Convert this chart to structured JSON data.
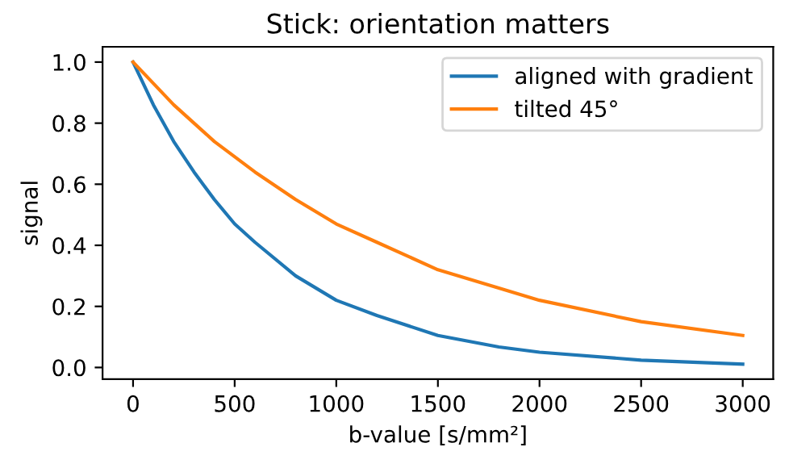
{
  "chart_data": {
    "type": "line",
    "title": "Stick: orientation matters",
    "xlabel": "b-value [s/mm²]",
    "ylabel": "signal",
    "series": [
      {
        "name": "aligned with gradient",
        "color": "#1f77b4",
        "x": [
          0,
          100,
          200,
          300,
          400,
          500,
          600,
          800,
          1000,
          1200,
          1500,
          1800,
          2000,
          2500,
          3000
        ],
        "values": [
          1.0,
          0.86,
          0.74,
          0.64,
          0.55,
          0.47,
          0.41,
          0.3,
          0.22,
          0.17,
          0.105,
          0.067,
          0.05,
          0.024,
          0.011
        ]
      },
      {
        "name": "tilted 45°",
        "color": "#ff7f0e",
        "x": [
          0,
          200,
          400,
          600,
          800,
          1000,
          1200,
          1500,
          1800,
          2000,
          2500,
          3000
        ],
        "values": [
          1.0,
          0.86,
          0.74,
          0.64,
          0.55,
          0.47,
          0.41,
          0.32,
          0.26,
          0.22,
          0.15,
          0.105
        ]
      }
    ],
    "xlim": [
      -150,
      3150
    ],
    "ylim": [
      -0.038,
      1.05
    ],
    "xticks": [
      0,
      500,
      1000,
      1500,
      2000,
      2500,
      3000
    ],
    "yticks": [
      {
        "value": 0.0,
        "label": "0.0"
      },
      {
        "value": 0.2,
        "label": "0.2"
      },
      {
        "value": 0.4,
        "label": "0.4"
      },
      {
        "value": 0.6,
        "label": "0.6"
      },
      {
        "value": 0.8,
        "label": "0.8"
      },
      {
        "value": 1.0,
        "label": "1.0"
      }
    ],
    "legend": "upper right"
  }
}
